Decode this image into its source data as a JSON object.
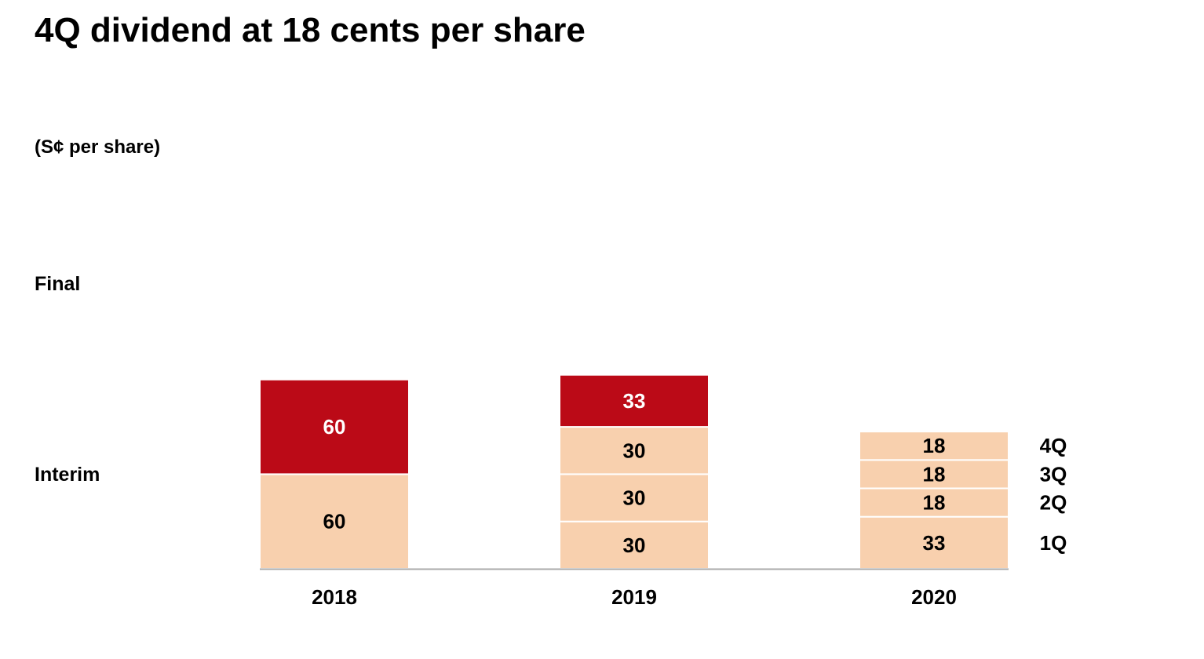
{
  "title": "4Q dividend at 18 cents per share",
  "unit_label": "(S¢ per share)",
  "row_labels": {
    "final": "Final",
    "interim": "Interim"
  },
  "colors": {
    "final": "#bb0a17",
    "interim": "#f8d0ae",
    "axis": "#aaaaaa",
    "final_text": "#ffffff",
    "interim_text": "#000000"
  },
  "chart_data": {
    "type": "bar",
    "stacked": true,
    "categories": [
      "2018",
      "2019",
      "2020"
    ],
    "ylabel": "(S¢ per share)",
    "bars": [
      {
        "category": "2018",
        "segments": [
          {
            "kind": "interim",
            "value": 60,
            "label": "60"
          },
          {
            "kind": "final",
            "value": 60,
            "label": "60"
          }
        ]
      },
      {
        "category": "2019",
        "segments": [
          {
            "kind": "interim",
            "value": 30,
            "label": "30"
          },
          {
            "kind": "interim",
            "value": 30,
            "label": "30"
          },
          {
            "kind": "interim",
            "value": 30,
            "label": "30"
          },
          {
            "kind": "final",
            "value": 33,
            "label": "33"
          }
        ]
      },
      {
        "category": "2020",
        "segments": [
          {
            "kind": "interim",
            "value": 33,
            "label": "33",
            "quarter": "1Q"
          },
          {
            "kind": "interim",
            "value": 18,
            "label": "18",
            "quarter": "2Q"
          },
          {
            "kind": "interim",
            "value": 18,
            "label": "18",
            "quarter": "3Q"
          },
          {
            "kind": "interim",
            "value": 18,
            "label": "18",
            "quarter": "4Q"
          }
        ]
      }
    ]
  }
}
